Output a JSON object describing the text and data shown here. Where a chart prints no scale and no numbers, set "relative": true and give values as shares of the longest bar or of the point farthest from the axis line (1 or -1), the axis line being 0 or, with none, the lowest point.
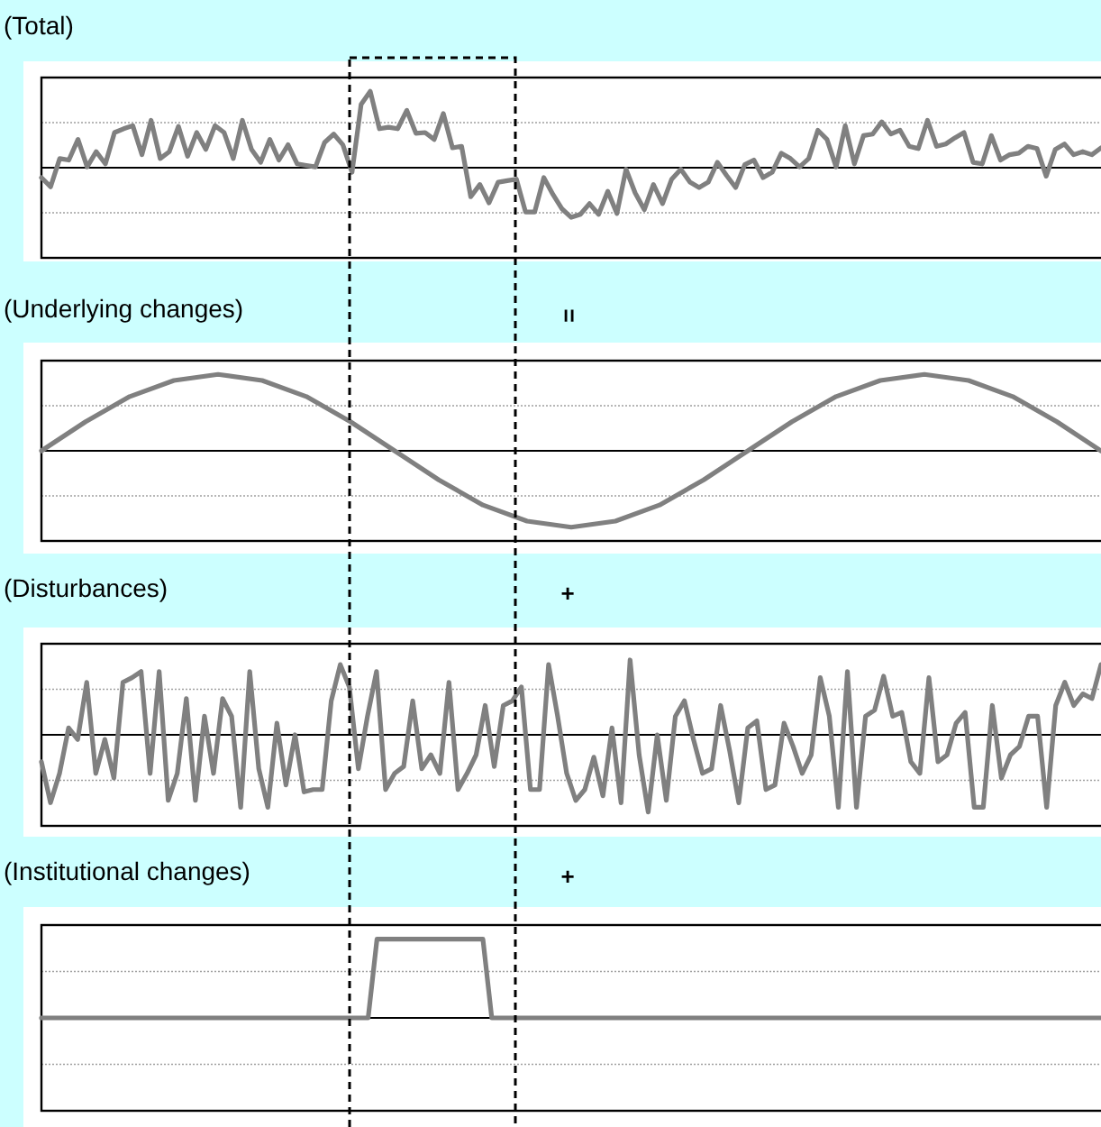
{
  "chart_data": [
    {
      "type": "line",
      "title": "(Total)",
      "relative": true,
      "color": "#808080",
      "ref_lines": [
        {
          "axis": "y",
          "value": 0.59,
          "color": "#a0a0a0",
          "line_style": "dotted"
        },
        {
          "axis": "y",
          "value": -0.59,
          "color": "#a0a0a0",
          "line_style": "dotted"
        }
      ],
      "categories": [
        null,
        null,
        null,
        null,
        null,
        null,
        null,
        null,
        null,
        null,
        null,
        null,
        null,
        null,
        null,
        null,
        null,
        null,
        null,
        null,
        null,
        null,
        null,
        null,
        null,
        null,
        null,
        null,
        null,
        null,
        null,
        null,
        null,
        null,
        null,
        null,
        null,
        null,
        null,
        null,
        null,
        null,
        null,
        null,
        null,
        null,
        null,
        null,
        null,
        null,
        null,
        null,
        null,
        null,
        null,
        null,
        null,
        null,
        null,
        null,
        null,
        null,
        null,
        null,
        null,
        null,
        null,
        null,
        null,
        null,
        null,
        null,
        null,
        null,
        null,
        null,
        null,
        null,
        null,
        null,
        null,
        null,
        null,
        null,
        null,
        null,
        null,
        null,
        null,
        null,
        null,
        null,
        null,
        null,
        null,
        null,
        null,
        null,
        null,
        null,
        null,
        null,
        null,
        null,
        null,
        null,
        null,
        null,
        null,
        null,
        null,
        null,
        null,
        null,
        null,
        null,
        null
      ],
      "values": [
        -0.13,
        -0.25,
        0.12,
        0.1,
        0.37,
        0.01,
        0.21,
        0.05,
        0.46,
        0.51,
        0.55,
        0.17,
        0.62,
        0.12,
        0.21,
        0.54,
        0.15,
        0.46,
        0.24,
        0.55,
        0.46,
        0.12,
        0.62,
        0.24,
        0.07,
        0.37,
        0.1,
        0.3,
        0.05,
        0.03,
        0.01,
        0.33,
        0.44,
        0.3,
        -0.06,
        0.83,
        1.0,
        0.51,
        0.53,
        0.51,
        0.75,
        0.45,
        0.46,
        0.37,
        0.71,
        0.26,
        0.28,
        -0.38,
        -0.22,
        -0.46,
        -0.19,
        -0.17,
        -0.15,
        -0.58,
        -0.58,
        -0.13,
        -0.35,
        -0.54,
        -0.65,
        -0.61,
        -0.47,
        -0.61,
        -0.31,
        -0.6,
        -0.02,
        -0.33,
        -0.55,
        -0.22,
        -0.47,
        -0.15,
        -0.02,
        -0.19,
        -0.26,
        -0.19,
        0.07,
        -0.1,
        -0.26,
        0.04,
        0.1,
        -0.13,
        -0.06,
        0.19,
        0.12,
        0.01,
        0.12,
        0.49,
        0.37,
        0.01,
        0.55,
        0.05,
        0.42,
        0.44,
        0.6,
        0.44,
        0.49,
        0.28,
        0.25,
        0.62,
        0.28,
        0.31,
        0.39,
        0.46,
        0.07,
        0.05,
        0.42,
        0.1,
        0.17,
        0.19,
        0.28,
        0.25,
        -0.11,
        0.24,
        0.31,
        0.17,
        0.21,
        0.17,
        0.26
      ]
    },
    {
      "type": "line",
      "title": "(Underlying changes)",
      "annotations": [
        "="
      ],
      "relative": true,
      "color": "#808080",
      "ref_lines": [
        {
          "axis": "y",
          "value": 0.59,
          "color": "#a0a0a0",
          "line_style": "dotted"
        },
        {
          "axis": "y",
          "value": -0.59,
          "color": "#a0a0a0",
          "line_style": "dotted"
        }
      ],
      "categories": [
        null,
        null,
        null,
        null,
        null,
        null,
        null,
        null,
        null,
        null,
        null,
        null,
        null,
        null,
        null,
        null,
        null,
        null,
        null,
        null,
        null,
        null,
        null,
        null,
        null
      ],
      "values": [
        0,
        0.38,
        0.71,
        0.92,
        1,
        0.92,
        0.71,
        0.38,
        0,
        -0.38,
        -0.71,
        -0.92,
        -1,
        -0.92,
        -0.71,
        -0.38,
        0,
        0.38,
        0.71,
        0.92,
        1,
        0.92,
        0.71,
        0.38,
        0
      ]
    },
    {
      "type": "line",
      "title": "(Disturbances)",
      "annotations": [
        "+"
      ],
      "relative": true,
      "color": "#808080",
      "ref_lines": [
        {
          "axis": "y",
          "value": 0.59,
          "color": "#a0a0a0",
          "line_style": "dotted"
        },
        {
          "axis": "y",
          "value": -0.59,
          "color": "#a0a0a0",
          "line_style": "dotted"
        }
      ],
      "categories": [
        null,
        null,
        null,
        null,
        null,
        null,
        null,
        null,
        null,
        null,
        null,
        null,
        null,
        null,
        null,
        null,
        null,
        null,
        null,
        null,
        null,
        null,
        null,
        null,
        null,
        null,
        null,
        null,
        null,
        null,
        null,
        null,
        null,
        null,
        null,
        null,
        null,
        null,
        null,
        null,
        null,
        null,
        null,
        null,
        null,
        null,
        null,
        null,
        null,
        null,
        null,
        null,
        null,
        null,
        null,
        null,
        null,
        null,
        null,
        null,
        null,
        null,
        null,
        null,
        null,
        null,
        null,
        null,
        null,
        null,
        null,
        null,
        null,
        null,
        null,
        null,
        null,
        null,
        null,
        null,
        null,
        null,
        null,
        null,
        null,
        null,
        null,
        null,
        null,
        null,
        null,
        null,
        null,
        null,
        null,
        null,
        null,
        null,
        null,
        null,
        null,
        null,
        null,
        null,
        null,
        null,
        null,
        null,
        null,
        null,
        null,
        null,
        null,
        null,
        null,
        null,
        null,
        null
      ],
      "values": [
        -0.35,
        -0.88,
        -0.5,
        0.09,
        -0.06,
        0.68,
        -0.5,
        -0.06,
        -0.56,
        0.68,
        0.74,
        0.82,
        -0.5,
        0.82,
        -0.85,
        -0.5,
        0.47,
        -0.85,
        0.24,
        -0.5,
        0.47,
        0.24,
        -0.94,
        0.82,
        -0.44,
        -0.94,
        0.15,
        -0.65,
        0,
        -0.74,
        -0.71,
        -0.71,
        0.44,
        0.91,
        0.62,
        -0.44,
        0.24,
        0.82,
        -0.71,
        -0.5,
        -0.41,
        0.44,
        -0.44,
        -0.26,
        -0.5,
        0.68,
        -0.71,
        -0.5,
        -0.26,
        0.38,
        -0.41,
        0.38,
        0.44,
        0.62,
        -0.71,
        -0.71,
        0.91,
        0.24,
        -0.5,
        -0.85,
        -0.71,
        -0.29,
        -0.79,
        0.09,
        -0.88,
        0.97,
        -0.26,
        -1.0,
        0,
        -0.85,
        0.24,
        0.44,
        -0.06,
        -0.5,
        -0.44,
        0.38,
        -0.21,
        -0.88,
        0.09,
        0.18,
        -0.71,
        -0.65,
        0.15,
        -0.15,
        -0.5,
        -0.26,
        0.74,
        0.24,
        -0.94,
        0.82,
        -0.94,
        0.24,
        0.32,
        0.76,
        0.24,
        0.29,
        -0.35,
        -0.5,
        0.74,
        -0.35,
        -0.26,
        0.15,
        0.29,
        -0.94,
        -0.94,
        0.38,
        -0.56,
        -0.26,
        -0.15,
        0.24,
        0.24,
        -0.94,
        0.38,
        0.68,
        0.38,
        0.53,
        0.47,
        0.91
      ]
    },
    {
      "type": "line",
      "title": "(Institutional changes)",
      "annotations": [
        "+"
      ],
      "relative": true,
      "color": "#808080",
      "ref_lines": [
        {
          "axis": "y",
          "value": 0.59,
          "color": "#a0a0a0",
          "line_style": "dotted"
        },
        {
          "axis": "y",
          "value": -0.59,
          "color": "#a0a0a0",
          "line_style": "dotted"
        }
      ],
      "categories": [
        null,
        null,
        null,
        null,
        null,
        null,
        null,
        null,
        null,
        null,
        null,
        null,
        null,
        null,
        null,
        null,
        null,
        null,
        null,
        null,
        null,
        null,
        null,
        null,
        null,
        null,
        null,
        null,
        null,
        null,
        null,
        null,
        null,
        null,
        null,
        null,
        null,
        null,
        null,
        null,
        null,
        null,
        null,
        null,
        null,
        null,
        null,
        null,
        null,
        null,
        null,
        null,
        null,
        null,
        null,
        null,
        null,
        null,
        null,
        null,
        null,
        null,
        null,
        null,
        null,
        null,
        null,
        null,
        null,
        null,
        null,
        null,
        null,
        null,
        null,
        null,
        null,
        null,
        null,
        null,
        null,
        null,
        null,
        null,
        null,
        null,
        null,
        null,
        null,
        null,
        null,
        null,
        null,
        null,
        null,
        null,
        null,
        null,
        null,
        null,
        null,
        null,
        null,
        null,
        null,
        null,
        null,
        null,
        null,
        null,
        null,
        null,
        null,
        null,
        null,
        null,
        null,
        null,
        null,
        null,
        null
      ],
      "values": [
        0,
        0,
        0,
        0,
        0,
        0,
        0,
        0,
        0,
        0,
        0,
        0,
        0,
        0,
        0,
        0,
        0,
        0,
        0,
        0,
        0,
        0,
        0,
        0,
        0,
        0,
        0,
        0,
        0,
        0,
        0,
        0,
        0,
        0,
        0,
        0,
        0,
        0,
        1,
        1,
        1,
        1,
        1,
        1,
        1,
        1,
        1,
        1,
        1,
        1,
        1,
        0,
        0,
        0,
        0,
        0,
        0,
        0,
        0,
        0,
        0,
        0,
        0,
        0,
        0,
        0,
        0,
        0,
        0,
        0,
        0,
        0,
        0,
        0,
        0,
        0,
        0,
        0,
        0,
        0,
        0,
        0,
        0,
        0,
        0,
        0,
        0,
        0,
        0,
        0,
        0,
        0,
        0,
        0,
        0,
        0,
        0,
        0,
        0,
        0,
        0,
        0,
        0,
        0,
        0,
        0,
        0,
        0,
        0,
        0,
        0,
        0,
        0,
        0,
        0,
        0,
        0,
        0,
        0,
        0,
        0
      ]
    }
  ]
}
